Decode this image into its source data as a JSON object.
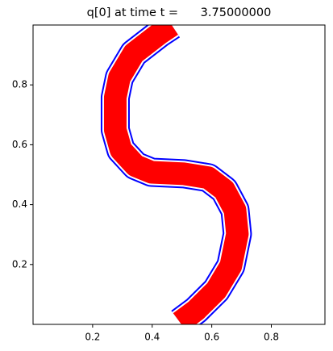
{
  "chart_data": {
    "type": "line",
    "title": "q[0] at time t =      3.75000000",
    "x": [
      0.493,
      0.547,
      0.615,
      0.664,
      0.686,
      0.678,
      0.642,
      0.588,
      0.507,
      0.398,
      0.344,
      0.295,
      0.276,
      0.276,
      0.29,
      0.338,
      0.425,
      0.466
    ],
    "series": [
      {
        "color": "#ff0000",
        "edgecolor": "#0000ff",
        "values": [
          0.007,
          0.047,
          0.114,
          0.195,
          0.302,
          0.382,
          0.449,
          0.49,
          0.503,
          0.508,
          0.53,
          0.583,
          0.65,
          0.758,
          0.825,
          0.905,
          0.972,
          0.999
        ]
      }
    ],
    "xlim": [
      0.0,
      0.98
    ],
    "ylim": [
      0.0,
      1.0
    ],
    "xticks": [
      0.2,
      0.4,
      0.6,
      0.8
    ],
    "yticks": [
      0.2,
      0.4,
      0.6,
      0.8
    ],
    "grid": false
  }
}
